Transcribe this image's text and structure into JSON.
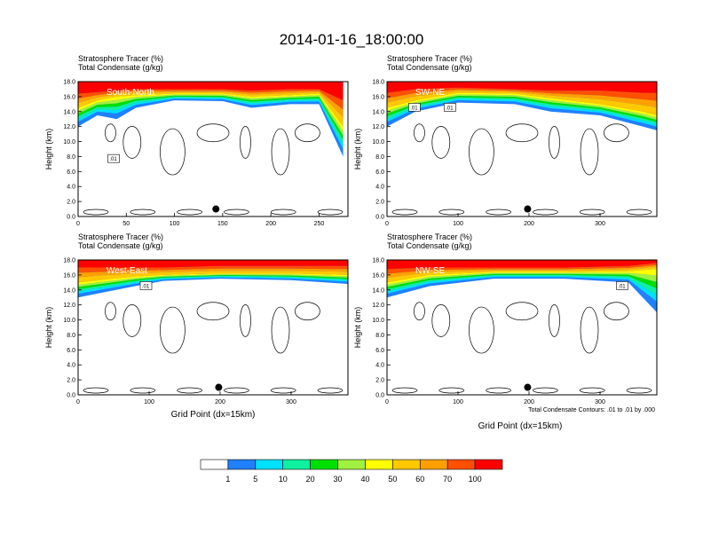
{
  "figure": {
    "title": "2014-01-16_18:00:00",
    "colorbar_levels": [
      "1",
      "5",
      "10",
      "20",
      "30",
      "40",
      "50",
      "60",
      "70",
      "100"
    ],
    "colorbar_colors": [
      "#ffffff",
      "#2080ff",
      "#00e0ff",
      "#10f0a0",
      "#00e000",
      "#a0f040",
      "#ffff00",
      "#ffc800",
      "#ffa000",
      "#ff5000",
      "#ff0000"
    ],
    "contour_note": "Total Condensate Contours: .01 to .01 by .000",
    "xlabel": "Grid Point (dx=15km)"
  },
  "chart_data": [
    {
      "type": "heatmap",
      "panel": "South-North",
      "title_left": "Stratosphere Tracer   (%)",
      "title_left2": "Total Condensate   (g/kg)",
      "xlabel": "",
      "ylabel": "Height (km)",
      "xlim": [
        0,
        280
      ],
      "ylim": [
        0,
        18
      ],
      "xticks": [
        "0",
        "50",
        "100",
        "150",
        "200",
        "250"
      ],
      "yticks": [
        "0.0",
        "2.0",
        "4.0",
        "6.0",
        "8.0",
        "10.0",
        "12.0",
        "14.0",
        "16.0",
        "18.0"
      ],
      "contour_labels": [
        ".01"
      ],
      "tracer_boundary": [
        {
          "x": 0,
          "top": 16.4,
          "mid": 14.5,
          "low": 12.0
        },
        {
          "x": 20,
          "top": 16.6,
          "mid": 15.5,
          "low": 13.5
        },
        {
          "x": 40,
          "top": 16.8,
          "mid": 16.0,
          "low": 13.0
        },
        {
          "x": 60,
          "top": 17.0,
          "mid": 16.2,
          "low": 14.5
        },
        {
          "x": 100,
          "top": 17.0,
          "mid": 16.4,
          "low": 15.5
        },
        {
          "x": 150,
          "top": 17.0,
          "mid": 16.4,
          "low": 15.4
        },
        {
          "x": 180,
          "top": 16.8,
          "mid": 16.0,
          "low": 14.5
        },
        {
          "x": 220,
          "top": 17.0,
          "mid": 16.2,
          "low": 15.0
        },
        {
          "x": 250,
          "top": 17.0,
          "mid": 16.4,
          "low": 15.0
        },
        {
          "x": 275,
          "top": 15.5,
          "mid": 12.0,
          "low": 8.0
        }
      ],
      "marker": {
        "x": 143,
        "y": 1.0
      }
    },
    {
      "type": "heatmap",
      "panel": "SW-NE",
      "title_left": "Stratosphere Tracer   (%)",
      "title_left2": "Total Condensate   (g/kg)",
      "xlabel": "",
      "ylabel": "Height (km)",
      "xlim": [
        0,
        380
      ],
      "ylim": [
        0,
        18
      ],
      "xticks": [
        "0",
        "100",
        "200",
        "300"
      ],
      "yticks": [
        "0.0",
        "2.0",
        "4.0",
        "6.0",
        "8.0",
        "10.0",
        "12.0",
        "14.0",
        "16.0",
        "18.0"
      ],
      "contour_labels": [
        ".01",
        ".01"
      ],
      "tracer_boundary": [
        {
          "x": 0,
          "top": 16.5,
          "mid": 14.5,
          "low": 12.0
        },
        {
          "x": 40,
          "top": 17.0,
          "mid": 15.5,
          "low": 14.0
        },
        {
          "x": 100,
          "top": 17.2,
          "mid": 16.5,
          "low": 15.2
        },
        {
          "x": 180,
          "top": 17.0,
          "mid": 16.4,
          "low": 15.0
        },
        {
          "x": 230,
          "top": 16.8,
          "mid": 15.8,
          "low": 14.0
        },
        {
          "x": 300,
          "top": 16.8,
          "mid": 15.0,
          "low": 13.5
        },
        {
          "x": 360,
          "top": 16.5,
          "mid": 14.0,
          "low": 12.0
        },
        {
          "x": 380,
          "top": 16.5,
          "mid": 13.5,
          "low": 11.5
        }
      ],
      "marker": {
        "x": 198,
        "y": 1.0
      }
    },
    {
      "type": "heatmap",
      "panel": "West-East",
      "title_left": "Stratosphere Tracer   (%)",
      "title_left2": "Total Condensate   (g/kg)",
      "xlabel": "Grid Point (dx=15km)",
      "ylabel": "Height (km)",
      "xlim": [
        0,
        380
      ],
      "ylim": [
        0,
        18
      ],
      "xticks": [
        "0",
        "100",
        "200",
        "300"
      ],
      "yticks": [
        "0.0",
        "2.0",
        "4.0",
        "6.0",
        "8.0",
        "10.0",
        "12.0",
        "14.0",
        "16.0",
        "18.0"
      ],
      "contour_labels": [
        ".01"
      ],
      "tracer_boundary": [
        {
          "x": 0,
          "top": 17.0,
          "mid": 15.0,
          "low": 13.0
        },
        {
          "x": 80,
          "top": 17.0,
          "mid": 15.8,
          "low": 14.5
        },
        {
          "x": 120,
          "top": 17.0,
          "mid": 16.0,
          "low": 15.2
        },
        {
          "x": 200,
          "top": 17.2,
          "mid": 16.2,
          "low": 15.5
        },
        {
          "x": 300,
          "top": 17.2,
          "mid": 16.2,
          "low": 15.3
        },
        {
          "x": 380,
          "top": 17.2,
          "mid": 16.0,
          "low": 14.8
        }
      ],
      "marker": {
        "x": 198,
        "y": 1.0
      }
    },
    {
      "type": "heatmap",
      "panel": "NW-SE",
      "title_left": "Stratosphere Tracer   (%)",
      "title_left2": "Total Condensate   (g/kg)",
      "xlabel": "Grid Point (dx=15km)",
      "ylabel": "Height (km)",
      "xlim": [
        0,
        380
      ],
      "ylim": [
        0,
        18
      ],
      "xticks": [
        "0",
        "100",
        "200",
        "300"
      ],
      "yticks": [
        "0.0",
        "2.0",
        "4.0",
        "6.0",
        "8.0",
        "10.0",
        "12.0",
        "14.0",
        "16.0",
        "18.0"
      ],
      "contour_labels": [
        ".01"
      ],
      "tracer_boundary": [
        {
          "x": 0,
          "top": 16.8,
          "mid": 15.0,
          "low": 13.0
        },
        {
          "x": 60,
          "top": 17.0,
          "mid": 16.0,
          "low": 14.5
        },
        {
          "x": 150,
          "top": 17.0,
          "mid": 16.4,
          "low": 15.5
        },
        {
          "x": 250,
          "top": 17.0,
          "mid": 16.4,
          "low": 15.5
        },
        {
          "x": 340,
          "top": 17.2,
          "mid": 16.5,
          "low": 15.0
        },
        {
          "x": 380,
          "top": 17.6,
          "mid": 16.8,
          "low": 11.0
        }
      ],
      "marker": {
        "x": 198,
        "y": 1.0
      }
    }
  ]
}
